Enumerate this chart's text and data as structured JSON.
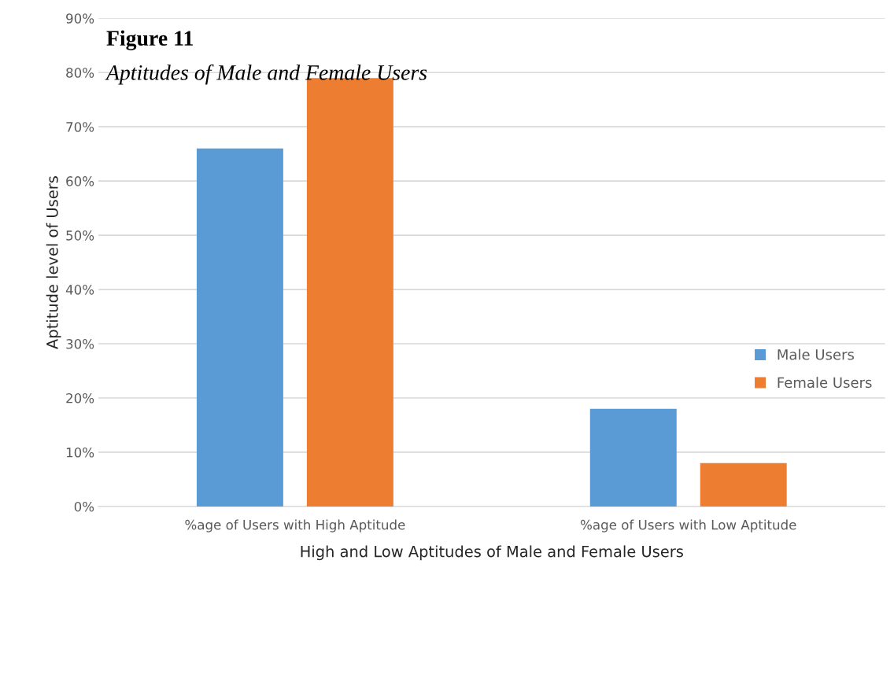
{
  "chart_data": {
    "type": "bar",
    "title": "Figure 11",
    "subtitle": "Aptitudes of Male and Female Users",
    "xlabel": "High and Low Aptitudes of Male and Female Users",
    "ylabel": "Aptitude level of Users",
    "categories": [
      "%age of Users with High Aptitude",
      "%age of Users with Low Aptitude"
    ],
    "series": [
      {
        "name": "Male Users",
        "color": "#5b9bd5",
        "values": [
          66,
          18
        ]
      },
      {
        "name": "Female Users",
        "color": "#ed7d31",
        "values": [
          79,
          8
        ]
      }
    ],
    "ylim": [
      0,
      90
    ],
    "yticks": [
      {
        "value": 0,
        "label": "0%"
      },
      {
        "value": 10,
        "label": "10%"
      },
      {
        "value": 20,
        "label": "20%"
      },
      {
        "value": 30,
        "label": "30%"
      },
      {
        "value": 40,
        "label": "40%"
      },
      {
        "value": 50,
        "label": "50%"
      },
      {
        "value": 60,
        "label": "60%"
      },
      {
        "value": 70,
        "label": "70%"
      },
      {
        "value": 80,
        "label": "80%"
      },
      {
        "value": 90,
        "label": "90%"
      }
    ],
    "grid": "y",
    "legend": "right"
  }
}
